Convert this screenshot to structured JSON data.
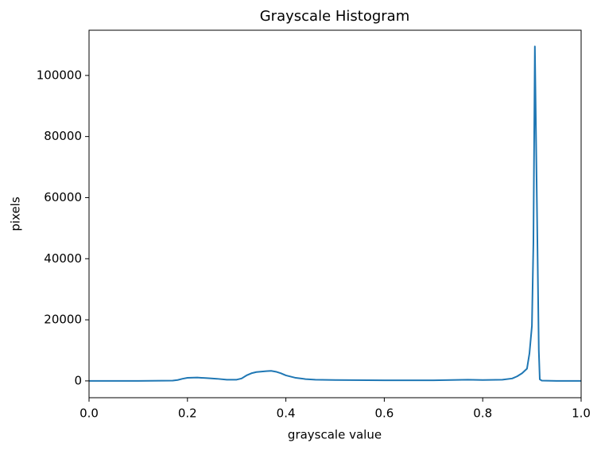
{
  "chart_data": {
    "type": "line",
    "title": "Grayscale Histogram",
    "x_label": "grayscale value",
    "y_label": "pixels",
    "x": [
      0,
      0.1,
      0.17,
      0.18,
      0.19,
      0.2,
      0.22,
      0.24,
      0.26,
      0.28,
      0.3,
      0.31,
      0.32,
      0.33,
      0.34,
      0.36,
      0.37,
      0.38,
      0.39,
      0.4,
      0.42,
      0.44,
      0.46,
      0.5,
      0.6,
      0.7,
      0.77,
      0.8,
      0.84,
      0.86,
      0.87,
      0.88,
      0.89,
      0.895,
      0.9,
      0.903,
      0.906,
      0.91,
      0.914,
      0.916,
      0.92,
      0.95,
      1.0
    ],
    "series": [
      {
        "name": "pixels",
        "color": "#1f77b4",
        "values": [
          0,
          0,
          100,
          300,
          700,
          1000,
          1100,
          900,
          700,
          400,
          400,
          800,
          1800,
          2500,
          2900,
          3200,
          3300,
          3000,
          2500,
          1800,
          1000,
          600,
          400,
          300,
          200,
          200,
          400,
          300,
          400,
          800,
          1500,
          2500,
          4000,
          9000,
          18000,
          45000,
          109500,
          60000,
          10000,
          500,
          100,
          0,
          0
        ]
      }
    ],
    "xlim": [
      0,
      1
    ],
    "xticks": [
      {
        "value": 0,
        "label": "0.0"
      },
      0.2,
      0.4,
      0.6,
      0.8,
      {
        "value": 1,
        "label": "1.0"
      }
    ],
    "ylim": [
      -5500,
      114800
    ],
    "yticks": [
      0,
      20000,
      40000,
      60000,
      80000,
      100000
    ],
    "grid": false
  }
}
